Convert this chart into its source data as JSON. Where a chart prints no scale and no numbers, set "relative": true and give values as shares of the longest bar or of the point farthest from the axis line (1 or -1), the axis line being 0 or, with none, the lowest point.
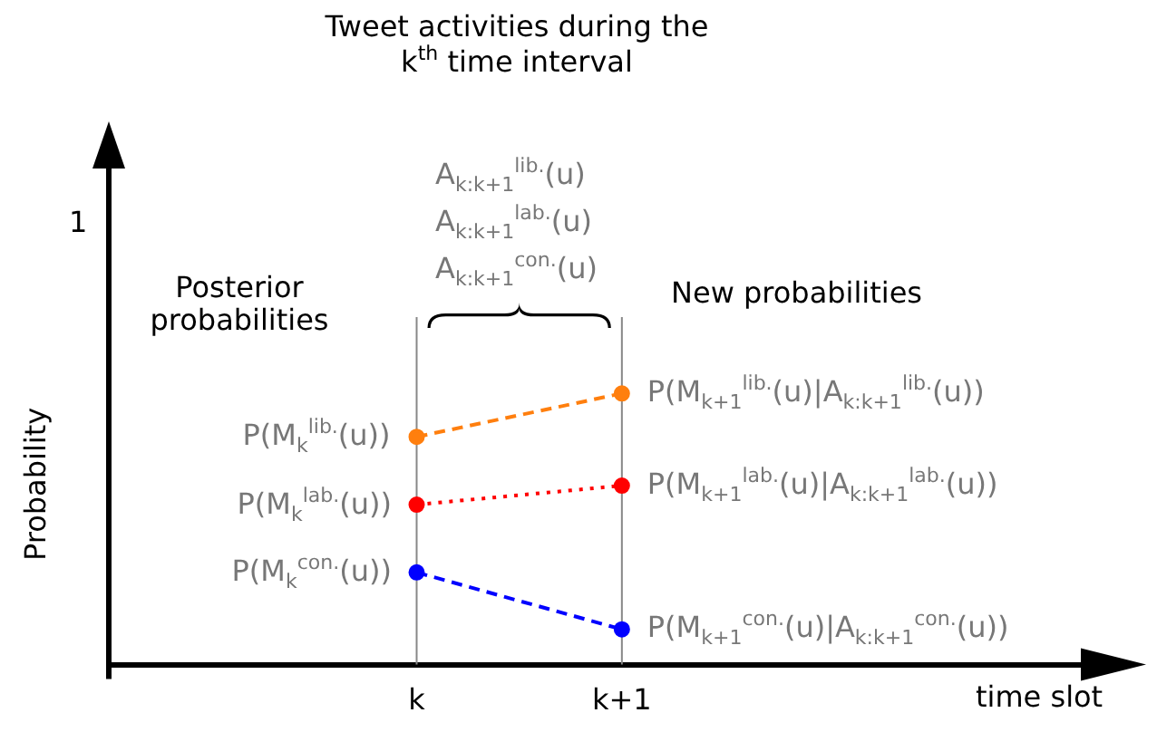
{
  "chart_data": {
    "type": "line",
    "title": "Tweet activities during the k$^{th}$ time interval",
    "categories": [
      "k",
      "k+1"
    ],
    "relative": true,
    "series": [
      {
        "color": "#ff7f0e",
        "values": [
          0.84,
          1
        ],
        "line_style": "dashed"
      },
      {
        "color": "#ff0000",
        "values": [
          0.59,
          0.66
        ],
        "line_style": "dotted"
      },
      {
        "color": "#0000ff",
        "values": [
          0.34,
          0.13
        ],
        "line_style": "dashed"
      }
    ],
    "ref_lines": [
      {
        "axis": "x",
        "value": "k",
        "color": "#888888"
      },
      {
        "axis": "x",
        "value": "k+1",
        "color": "#888888"
      }
    ],
    "annotations": [
      "Probability",
      "time slot",
      "1",
      "Posterior probabilities",
      "New probabilities",
      "A$_{k:k+1}$$^{lib.}$(u)",
      "A$_{k:k+1}$$^{lab.}$(u)",
      "A$_{k:k+1}$$^{con.}$(u)",
      {
        "text": "P(M$_{k}$$^{lib.}$(u))",
        "x": "k",
        "y": 0.84
      },
      {
        "text": "P(M$_{k}$$^{lab.}$(u))",
        "x": "k",
        "y": 0.59
      },
      {
        "text": "P(M$_{k}$$^{con.}$(u))",
        "x": "k",
        "y": 0.34
      },
      {
        "text": "P(M$_{k+1}$$^{lib.}$(u)|A$_{k:k+1}$$^{lib.}$(u))",
        "x": "k+1",
        "y": 1
      },
      {
        "text": "P(M$_{k+1}$$^{lab.}$(u)|A$_{k:k+1}$$^{lab.}$(u))",
        "x": "k+1",
        "y": 0.66
      },
      {
        "text": "P(M$_{k+1}$$^{con.}$(u)|A$_{k:k+1}$$^{con.}$(u))",
        "x": "k+1",
        "y": 0.13
      }
    ],
    "legend": false,
    "marker": "circle",
    "grid": false
  }
}
